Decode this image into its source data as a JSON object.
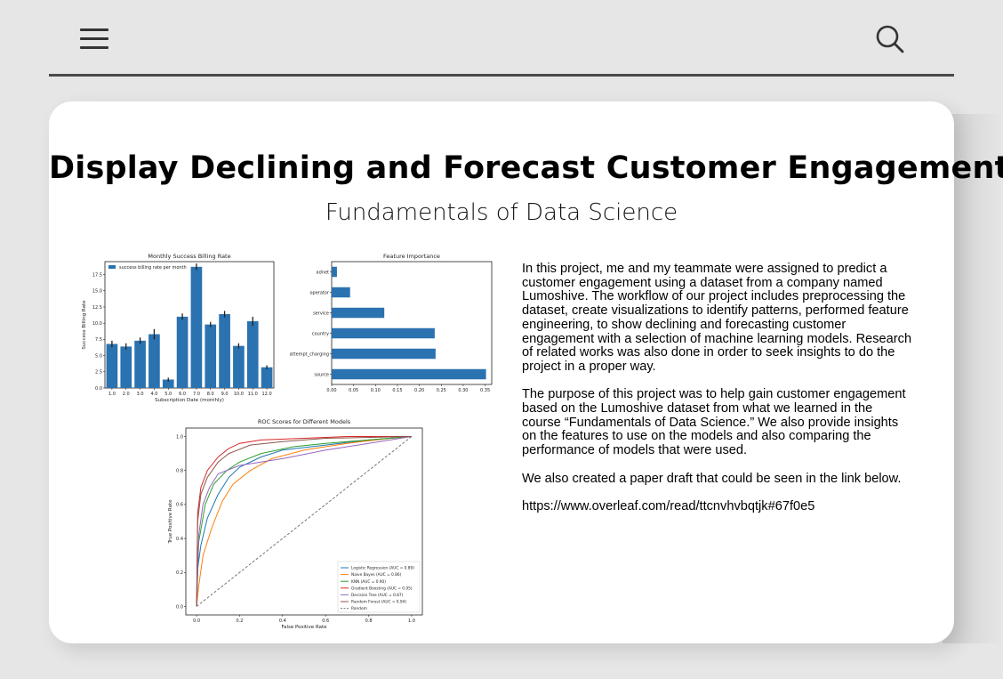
{
  "header": {
    "menu_icon": "hamburger-menu-icon",
    "search_icon": "search-icon"
  },
  "page": {
    "title": "Display Declining and Forecast Customer Engagement",
    "subtitle": "Fundamentals of Data Science",
    "paragraphs": [
      "In this project, me and my teammate were assigned to predict a customer engagement using a dataset from a company named Lumoshive. The workflow of our project includes preprocessing the dataset, create visualizations to identify patterns, performed feature engineering, to show declining and forecasting customer engagement with a selection of machine learning models. Research of related works was also done in order to seek insights to do the project in a proper way.",
      "The purpose of this project was to help gain customer engagement based on the Lumoshive dataset from what we learned in the course “Fundamentals of Data Science.” We also provide insights on the features to use on the models and also comparing the performance of models that were used.",
      "We also created a paper draft that could be seen in the link below.",
      "https://www.overleaf.com/read/ttcnvhvbqtjk#67f0e5"
    ]
  },
  "chart_data": [
    {
      "type": "bar",
      "title": "Monthly Success Billing Rate",
      "xlabel": "Subscription Date (monthly)",
      "ylabel": "Success Billing Rate",
      "legend": "success billing rate per month",
      "legend_position": "top-left",
      "categories": [
        "1.0",
        "2.0",
        "3.0",
        "4.0",
        "5.0",
        "6.0",
        "7.0",
        "8.0",
        "9.0",
        "10.0",
        "11.0",
        "12.0"
      ],
      "values": [
        6.8,
        6.4,
        7.3,
        8.3,
        1.3,
        11.0,
        18.7,
        9.8,
        11.4,
        6.5,
        10.3,
        3.2
      ],
      "errors": [
        0.5,
        0.5,
        0.5,
        0.8,
        0.3,
        0.5,
        0.5,
        0.4,
        0.5,
        0.4,
        0.7,
        0.3
      ],
      "yticks": [
        "0.0",
        "2.5",
        "5.0",
        "7.5",
        "10.0",
        "12.5",
        "15.0",
        "17.5"
      ],
      "ylim": [
        0,
        19.5
      ],
      "color": "#2b72b0"
    },
    {
      "type": "bar",
      "orientation": "horizontal",
      "title": "Feature Importance",
      "categories": [
        "adnet",
        "operator",
        "service",
        "country",
        "attempt_charging",
        "source"
      ],
      "values": [
        0.012,
        0.042,
        0.12,
        0.235,
        0.237,
        0.352
      ],
      "xticks": [
        "0.00",
        "0.05",
        "0.10",
        "0.15",
        "0.20",
        "0.25",
        "0.30",
        "0.35"
      ],
      "xlim": [
        0,
        0.365
      ],
      "color": "#2b72b0"
    },
    {
      "type": "line",
      "title": "ROC Scores for Different Models",
      "xlabel": "False Positive Rate",
      "ylabel": "True Positive Rate",
      "xticks": [
        "0.0",
        "0.2",
        "0.4",
        "0.6",
        "0.8",
        "1.0"
      ],
      "yticks": [
        "0.0",
        "0.2",
        "0.4",
        "0.6",
        "0.8",
        "1.0"
      ],
      "xlim": [
        -0.05,
        1.05
      ],
      "ylim": [
        -0.05,
        1.05
      ],
      "legend_position": "lower-right",
      "series": [
        {
          "name": "Logistic Regression (AUC = 0.89)",
          "color": "#1f77b4",
          "points": [
            [
              0,
              0
            ],
            [
              0.005,
              0.22
            ],
            [
              0.02,
              0.36
            ],
            [
              0.05,
              0.52
            ],
            [
              0.1,
              0.66
            ],
            [
              0.15,
              0.76
            ],
            [
              0.2,
              0.82
            ],
            [
              0.3,
              0.88
            ],
            [
              0.4,
              0.92
            ],
            [
              0.6,
              0.95
            ],
            [
              0.8,
              0.98
            ],
            [
              1,
              1
            ]
          ]
        },
        {
          "name": "Naive Bayes (AUC = 0.86)",
          "color": "#ff7f0e",
          "points": [
            [
              0,
              0
            ],
            [
              0.01,
              0.12
            ],
            [
              0.03,
              0.3
            ],
            [
              0.07,
              0.46
            ],
            [
              0.12,
              0.62
            ],
            [
              0.17,
              0.72
            ],
            [
              0.25,
              0.8
            ],
            [
              0.35,
              0.87
            ],
            [
              0.5,
              0.92
            ],
            [
              0.7,
              0.96
            ],
            [
              0.9,
              0.99
            ],
            [
              1,
              1
            ]
          ]
        },
        {
          "name": "KNN (AUC = 0.90)",
          "color": "#2ca02c",
          "points": [
            [
              0,
              0
            ],
            [
              0.01,
              0.38
            ],
            [
              0.04,
              0.6
            ],
            [
              0.08,
              0.72
            ],
            [
              0.14,
              0.8
            ],
            [
              0.2,
              0.85
            ],
            [
              0.3,
              0.9
            ],
            [
              0.45,
              0.94
            ],
            [
              0.6,
              0.96
            ],
            [
              0.8,
              0.98
            ],
            [
              1,
              1
            ]
          ]
        },
        {
          "name": "Gradient Boosting (AUC = 0.95)",
          "color": "#d62728",
          "points": [
            [
              0,
              0
            ],
            [
              0.005,
              0.55
            ],
            [
              0.02,
              0.7
            ],
            [
              0.05,
              0.8
            ],
            [
              0.1,
              0.88
            ],
            [
              0.15,
              0.93
            ],
            [
              0.2,
              0.96
            ],
            [
              0.3,
              0.98
            ],
            [
              0.5,
              0.99
            ],
            [
              0.7,
              1
            ],
            [
              1,
              1
            ]
          ]
        },
        {
          "name": "Decision Tree (AUC = 0.87)",
          "color": "#9467bd",
          "points": [
            [
              0,
              0
            ],
            [
              0.01,
              0.42
            ],
            [
              0.03,
              0.6
            ],
            [
              0.06,
              0.7
            ],
            [
              0.1,
              0.78
            ],
            [
              0.2,
              0.83
            ],
            [
              0.4,
              0.87
            ],
            [
              0.6,
              0.92
            ],
            [
              0.8,
              0.96
            ],
            [
              1,
              1
            ]
          ]
        },
        {
          "name": "Random Forest (AUC = 0.94)",
          "color": "#8c564b",
          "points": [
            [
              0,
              0
            ],
            [
              0.005,
              0.5
            ],
            [
              0.02,
              0.66
            ],
            [
              0.05,
              0.76
            ],
            [
              0.1,
              0.85
            ],
            [
              0.15,
              0.9
            ],
            [
              0.25,
              0.95
            ],
            [
              0.4,
              0.97
            ],
            [
              0.6,
              0.99
            ],
            [
              1,
              1
            ]
          ]
        },
        {
          "name": "Random",
          "color": "#777777",
          "dashed": true,
          "points": [
            [
              0,
              0
            ],
            [
              1,
              1
            ]
          ]
        }
      ]
    }
  ]
}
